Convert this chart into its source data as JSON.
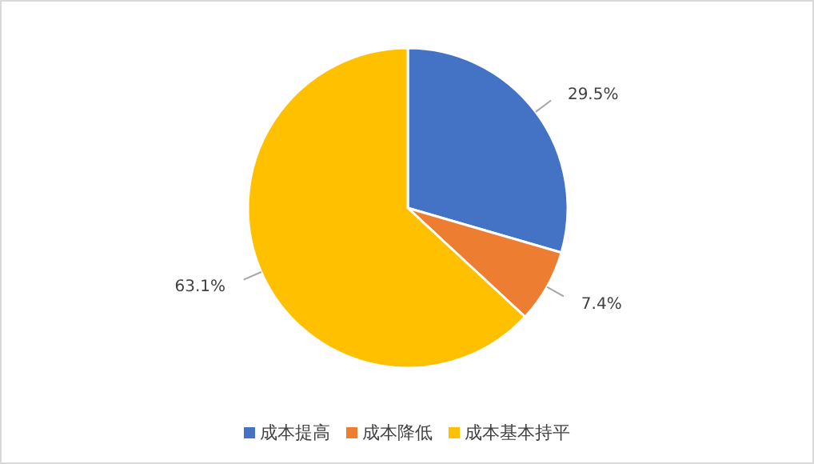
{
  "chart_data": {
    "type": "pie",
    "categories": [
      "成本提高",
      "成本降低",
      "成本基本持平"
    ],
    "values": [
      29.5,
      7.4,
      63.1
    ],
    "colors": [
      "#4472c4",
      "#ed7d31",
      "#ffc000"
    ],
    "value_labels": [
      "29.5%",
      "7.4%",
      "63.1%"
    ],
    "legend": "bottom"
  }
}
